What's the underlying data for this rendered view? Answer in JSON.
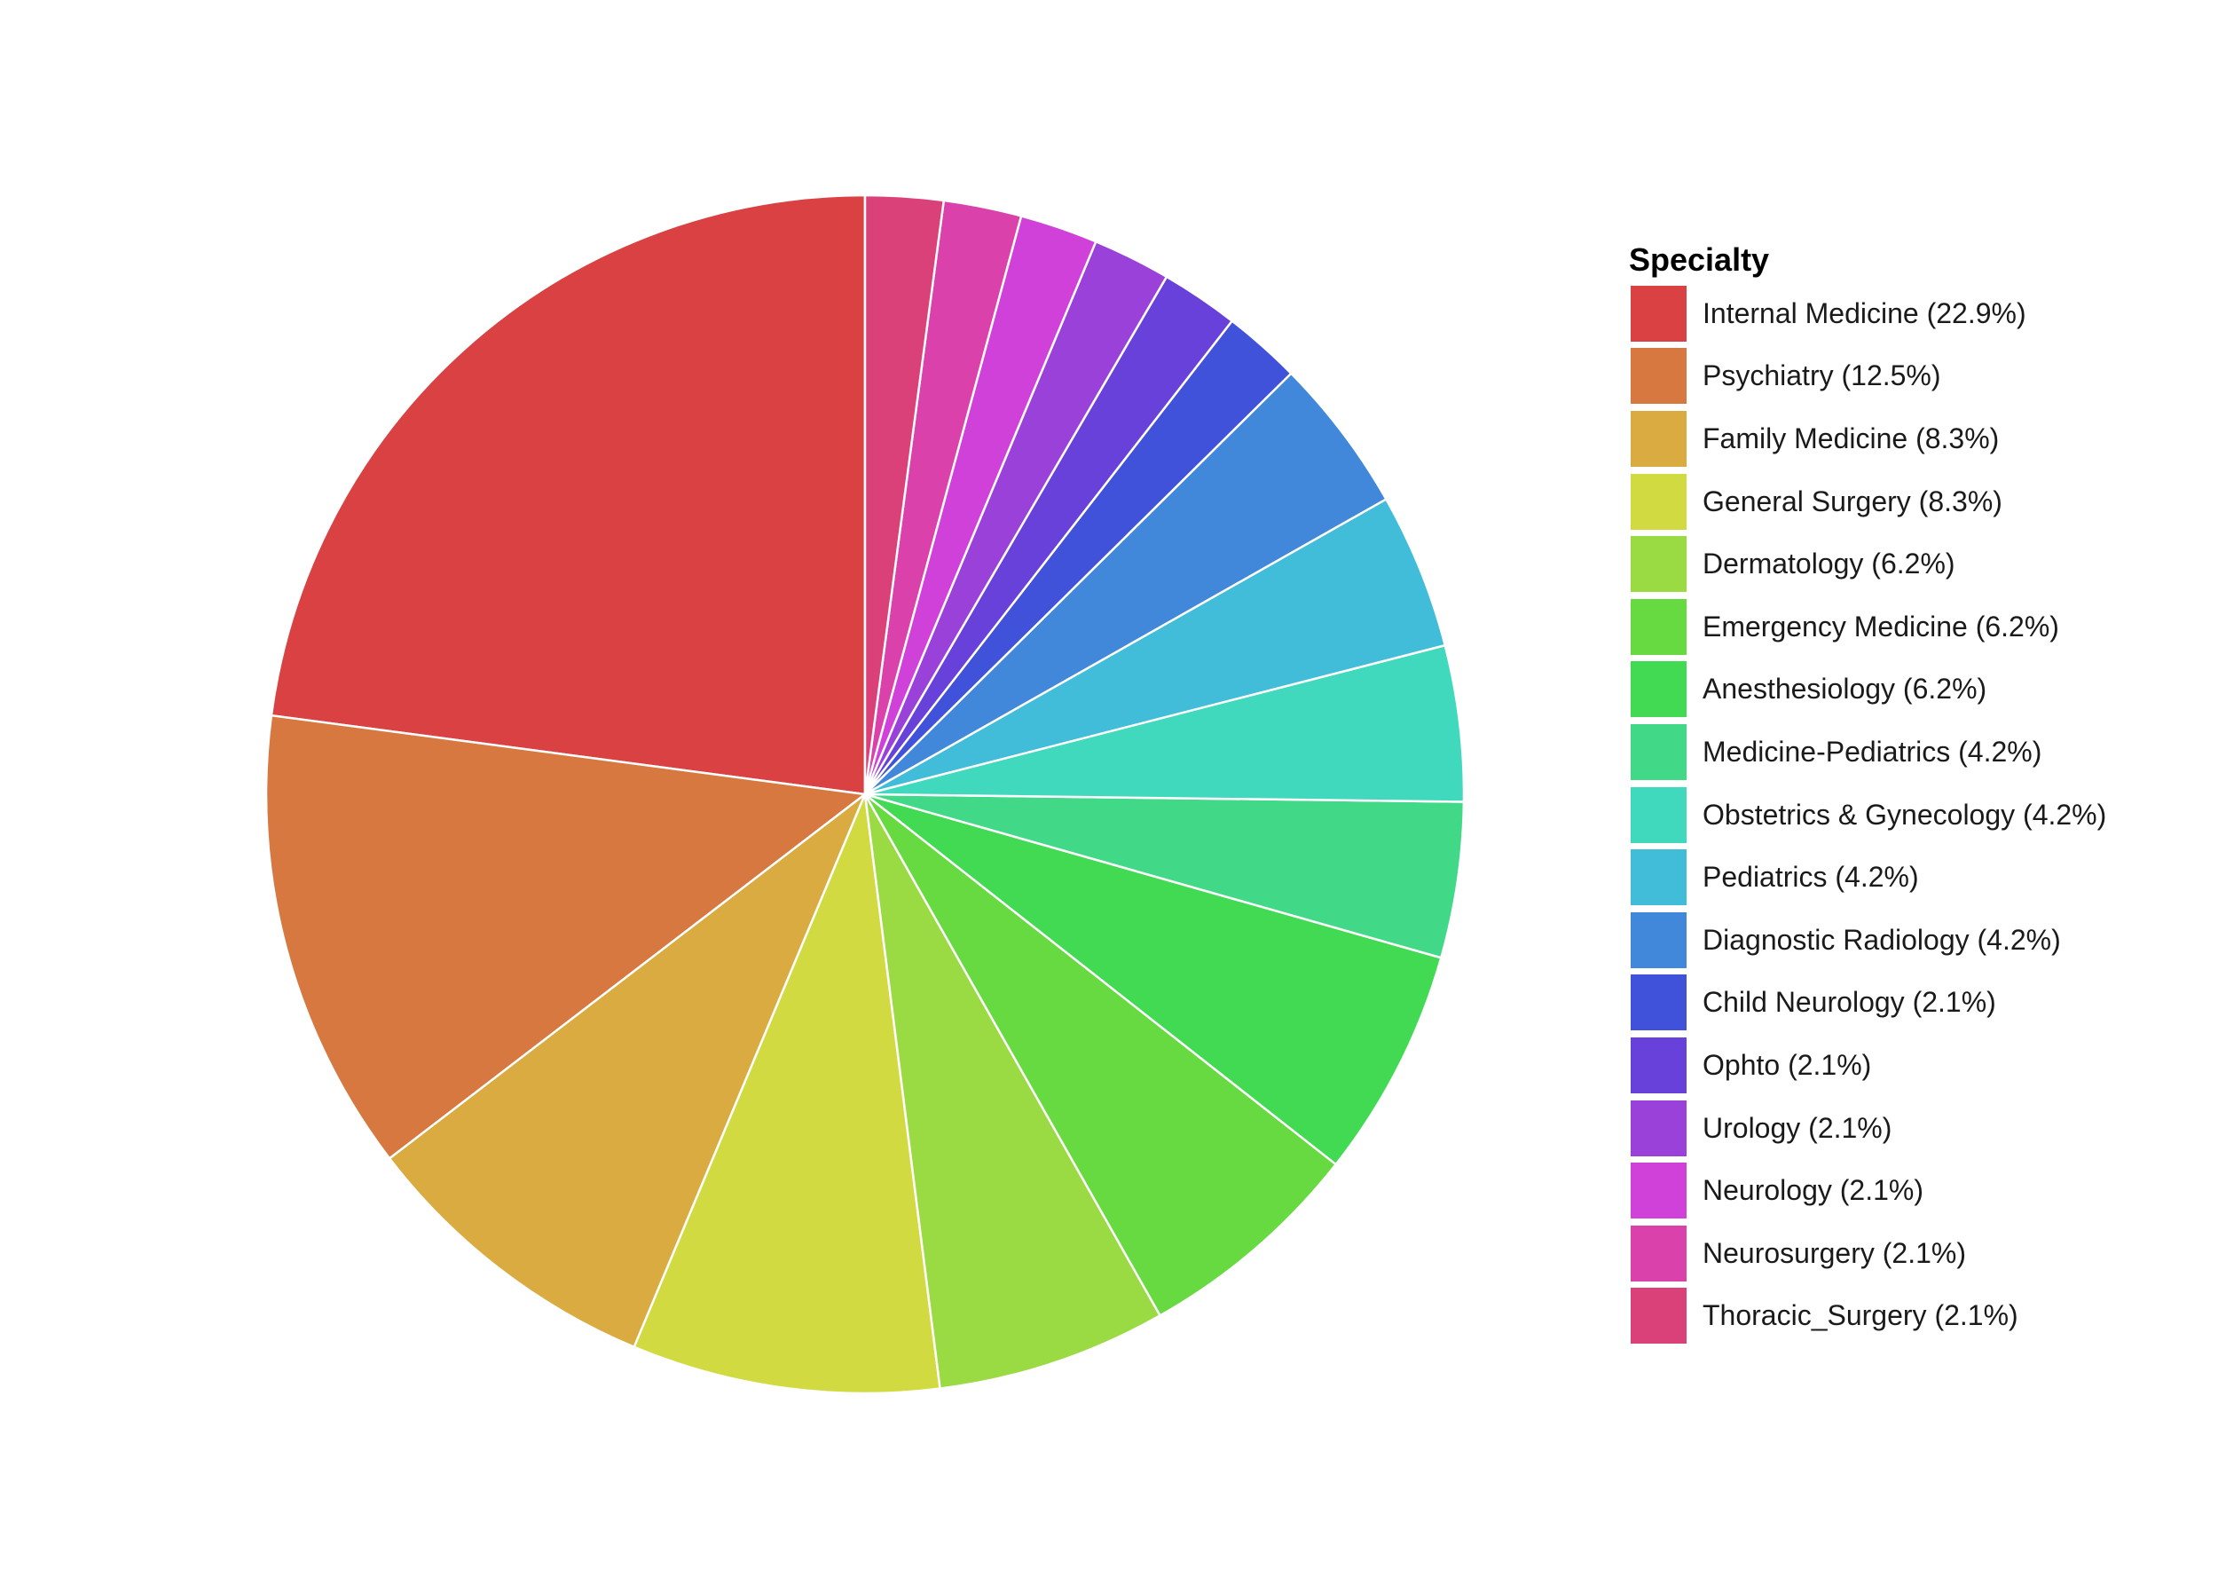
{
  "chart_data": {
    "type": "pie",
    "legend_title": "Specialty",
    "legend_position": "right",
    "start_angle": "12 o'clock",
    "direction": "counter-clockwise",
    "slice_border_color": "#ffffff",
    "slices": [
      {
        "label": "Internal Medicine (22.9%)",
        "category": "Internal Medicine",
        "value": 22.9,
        "color": "#D94142"
      },
      {
        "label": "Psychiatry (12.5%)",
        "category": "Psychiatry",
        "value": 12.5,
        "color": "#D87841"
      },
      {
        "label": "Family Medicine (8.3%)",
        "category": "Family Medicine",
        "value": 8.3,
        "color": "#D9AB41"
      },
      {
        "label": "General Surgery (8.3%)",
        "category": "General Surgery",
        "value": 8.3,
        "color": "#D2DA41"
      },
      {
        "label": "Dermatology (6.2%)",
        "category": "Dermatology",
        "value": 6.2,
        "color": "#9ADA42"
      },
      {
        "label": "Emergency Medicine (6.2%)",
        "category": "Emergency Medicine",
        "value": 6.2,
        "color": "#67DA41"
      },
      {
        "label": "Anesthesiology (6.2%)",
        "category": "Anesthesiology",
        "value": 6.2,
        "color": "#41DA52"
      },
      {
        "label": "Medicine-Pediatrics (4.2%)",
        "category": "Medicine-Pediatrics",
        "value": 4.2,
        "color": "#41D987"
      },
      {
        "label": "Obstetrics & Gynecology (4.2%)",
        "category": "Obstetrics & Gynecology",
        "value": 4.2,
        "color": "#41D9BD"
      },
      {
        "label": "Pediatrics (4.2%)",
        "category": "Pediatrics",
        "value": 4.2,
        "color": "#41BDDA"
      },
      {
        "label": "Diagnostic Radiology (4.2%)",
        "category": "Diagnostic Radiology",
        "value": 4.2,
        "color": "#4187DA"
      },
      {
        "label": "Child Neurology (2.1%)",
        "category": "Child Neurology",
        "value": 2.1,
        "color": "#4152DA"
      },
      {
        "label": "Ophto (2.1%)",
        "category": "Ophto",
        "value": 2.1,
        "color": "#6741DA"
      },
      {
        "label": "Urology (2.1%)",
        "category": "Urology",
        "value": 2.1,
        "color": "#9A41DA"
      },
      {
        "label": "Neurology (2.1%)",
        "category": "Neurology",
        "value": 2.1,
        "color": "#D041DA"
      },
      {
        "label": "Neurosurgery (2.1%)",
        "category": "Neurosurgery",
        "value": 2.1,
        "color": "#DA41AB"
      },
      {
        "label": "Thoracic_Surgery (2.1%)",
        "category": "Thoracic_Surgery",
        "value": 2.1,
        "color": "#DA4178"
      }
    ]
  }
}
